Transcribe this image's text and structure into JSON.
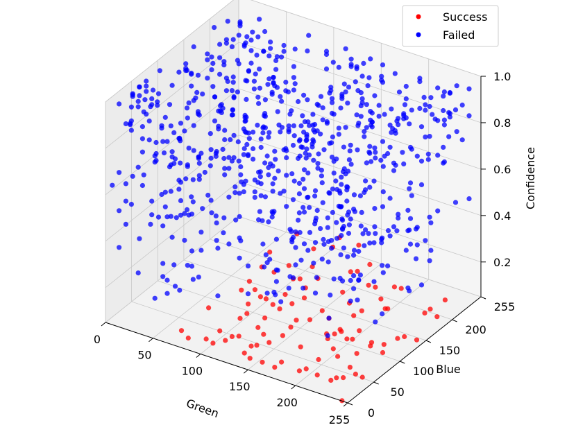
{
  "chart_data": {
    "type": "scatter3d",
    "xlabel": "Green",
    "ylabel": "Blue",
    "zlabel": "Confidence",
    "x_ticks": [
      "0",
      "50",
      "100",
      "150",
      "200",
      "255"
    ],
    "y_ticks": [
      "0",
      "50",
      "100",
      "150",
      "200",
      "255"
    ],
    "z_ticks": [
      "0.2",
      "0.4",
      "0.6",
      "0.8",
      "1.0"
    ],
    "xlim": [
      0,
      255
    ],
    "ylim": [
      0,
      255
    ],
    "zlim": [
      0.05,
      1.0
    ],
    "grid": true,
    "legend": "top-right",
    "series": [
      {
        "name": "Success",
        "color": "#ff0000",
        "region": {
          "green": [
            80,
            255
          ],
          "blue": [
            0,
            230
          ],
          "confidence": [
            0.05,
            0.25
          ]
        },
        "grid_step": 13
      },
      {
        "name": "Failed",
        "color": "#0000ff",
        "region": {
          "green": [
            0,
            255
          ],
          "blue": [
            0,
            255
          ],
          "confidence": [
            0.2,
            0.95
          ]
        },
        "grid_step": 13
      }
    ]
  }
}
